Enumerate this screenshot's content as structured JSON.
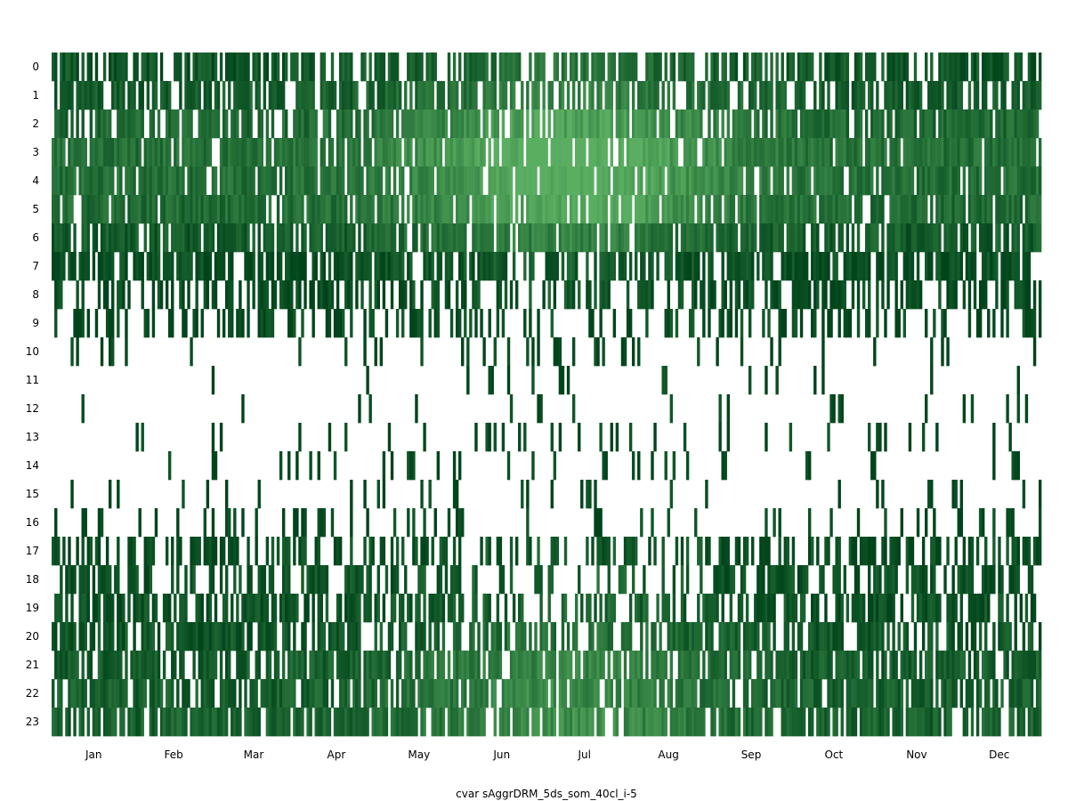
{
  "chart_data": {
    "type": "heatmap",
    "title": "",
    "xlabel": "cvar sAggrDRM_5ds_som_40cl_i-5",
    "ylabel": "",
    "x_tick_labels": [
      "Jan",
      "Feb",
      "Mar",
      "Apr",
      "May",
      "Jun",
      "Jul",
      "Aug",
      "Sep",
      "Oct",
      "Nov",
      "Dec"
    ],
    "y_tick_labels": [
      "0",
      "1",
      "2",
      "3",
      "4",
      "5",
      "6",
      "7",
      "8",
      "9",
      "10",
      "11",
      "12",
      "13",
      "14",
      "15",
      "16",
      "17",
      "18",
      "19",
      "20",
      "21",
      "22",
      "23"
    ],
    "x_range": [
      "Jan 1",
      "Dec 31"
    ],
    "days": 365,
    "hours": 24,
    "colormap": "Greens",
    "color_light": "#5aae61",
    "color_dark": "#00441b",
    "empty_color": "#ffffff",
    "grid": false,
    "legend": "none",
    "hourly_fill_fraction": [
      0.72,
      0.7,
      0.8,
      0.85,
      0.88,
      0.86,
      0.82,
      0.74,
      0.62,
      0.45,
      0.1,
      0.04,
      0.05,
      0.07,
      0.06,
      0.05,
      0.2,
      0.5,
      0.62,
      0.7,
      0.72,
      0.76,
      0.8,
      0.84
    ],
    "hourly_summer_adjust": [
      0.0,
      0.0,
      0.0,
      0.0,
      0.0,
      0.0,
      0.0,
      -0.15,
      -0.25,
      -0.2,
      0.0,
      0.0,
      0.0,
      0.03,
      0.03,
      0.02,
      -0.1,
      -0.2,
      -0.3,
      -0.25,
      -0.1,
      0.0,
      0.05,
      0.05
    ],
    "hourly_lightness": [
      0.3,
      0.4,
      0.62,
      0.75,
      0.72,
      0.65,
      0.4,
      0.15,
      0.12,
      0.08,
      0.02,
      0.02,
      0.02,
      0.02,
      0.02,
      0.02,
      0.05,
      0.15,
      0.2,
      0.22,
      0.3,
      0.42,
      0.45,
      0.48
    ]
  }
}
